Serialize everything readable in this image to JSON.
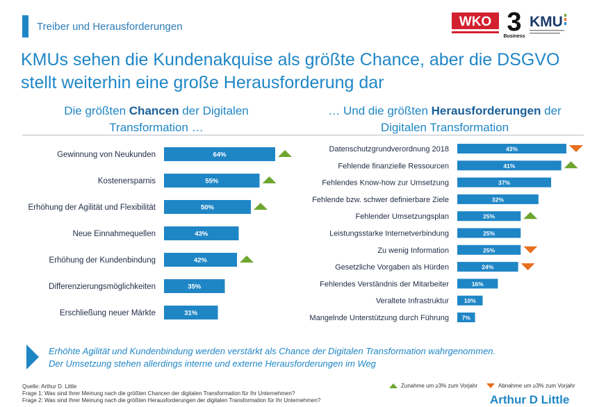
{
  "header": {
    "section": "Treiber und Herausforderungen",
    "logos": {
      "wko": "WKO",
      "three": "3",
      "three_sub": "Business",
      "kmu": "KMU"
    }
  },
  "title": {
    "line1": "KMUs sehen die Kundenakquise als größte Chance, aber die DSGVO",
    "line2": "stellt weiterhin eine große Herausforderung dar"
  },
  "left_heading": {
    "pre": "Die größten ",
    "bold": "Chancen",
    "post": " der Digitalen",
    "line2": "Transformation …"
  },
  "right_heading": {
    "pre": "… Und die größten ",
    "bold": "Herausforderungen",
    "post": " der",
    "line2": "Digitalen Transformation"
  },
  "colors": {
    "bar": "#1f86c6",
    "bar_label": "#ffffff",
    "up": "#6ea52f",
    "down": "#e76f1e",
    "text": "#1f2a44",
    "rule": "#b9bcc0"
  },
  "chart_data": [
    {
      "type": "bar",
      "orientation": "horizontal",
      "title": "Die größten Chancen der Digitalen Transformation …",
      "categories": [
        "Gewinnung von Neukunden",
        "Kostenersparnis",
        "Erhöhung der Agilität und Flexibilität",
        "Neue Einnahmequellen",
        "Erhöhung der Kundenbindung",
        "Differenzierungsmöglichkeiten",
        "Erschließung neuer Märkte"
      ],
      "values": [
        64,
        55,
        50,
        43,
        42,
        35,
        31
      ],
      "labels": [
        "64%",
        "55%",
        "50%",
        "43%",
        "42%",
        "35%",
        "31%"
      ],
      "trend": [
        "up",
        "up",
        "up",
        "",
        "up",
        "",
        ""
      ],
      "xlim": [
        0,
        100
      ]
    },
    {
      "type": "bar",
      "orientation": "horizontal",
      "title": "… Und die größten Herausforderungen der Digitalen Transformation",
      "categories": [
        "Datenschutzgrundverordnung 2018",
        "Fehlende finanzielle Ressourcen",
        "Fehlendes Know-how zur Umsetzung",
        "Fehlende bzw. schwer definierbare Ziele",
        "Fehlender Umsetzungsplan",
        "Leistungsstarke Internetverbindung",
        "Zu wenig Information",
        "Gesetzliche Vorgaben als Hürden",
        "Fehlendes Verständnis der Mitarbeiter",
        "Veraltete Infrastruktur",
        "Mangelnde Unterstützung durch Führung"
      ],
      "values": [
        43,
        41,
        37,
        32,
        25,
        25,
        25,
        24,
        16,
        10,
        7
      ],
      "labels": [
        "43%",
        "41%",
        "37%",
        "32%",
        "25%",
        "25%",
        "25%",
        "24%",
        "16%",
        "10%",
        "7%"
      ],
      "trend": [
        "down",
        "up",
        "",
        "",
        "up",
        "",
        "down",
        "down",
        "",
        "",
        ""
      ],
      "xlim": [
        0,
        100
      ]
    }
  ],
  "callout": {
    "line1": "Erhöhte Agilität und Kundenbindung werden verstärkt als Chance der Digitalen Transformation wahrgenommen.",
    "line2": "Der Umsetzung stehen allerdings interne und externe Herausforderungen im Weg"
  },
  "footer": {
    "source": "Quelle: Arthur D. Little",
    "q1": "Frage 1: Was sind Ihrer Meinung nach die größten Chancen der digitalen Transformation für Ihr Unternehmen?",
    "q2": "Frage 2: Was sind Ihrer Meinung nach die größten Herausforderungen der digitalen Transformation für Ihr Unternehmen?"
  },
  "legend": {
    "up": "Zunahme um ≥3% zum Vorjahr",
    "down": "Abnahme um ≥3% zum Vorjahr"
  },
  "brand": "Arthur D Little"
}
